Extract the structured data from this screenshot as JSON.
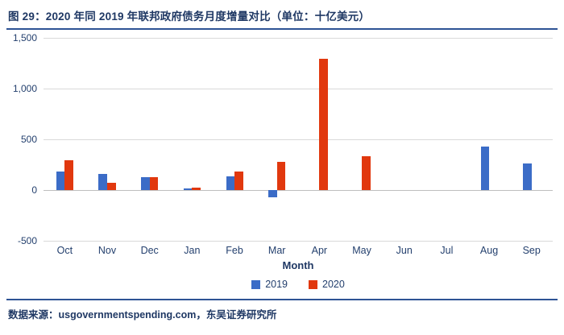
{
  "header": {
    "title": "图 29：2020 年同 2019 年联邦政府债务月度增量对比（单位：十亿美元）"
  },
  "footer": {
    "source": "数据来源：usgovernmentspending.com，东吴证券研究所"
  },
  "colors": {
    "title": "#1F3864",
    "rule": "#2E5395",
    "axis_text": "#24406E",
    "grid": "#D9D9D9"
  },
  "chart_data": {
    "type": "bar",
    "categories": [
      "Oct",
      "Nov",
      "Dec",
      "Jan",
      "Feb",
      "Mar",
      "Apr",
      "May",
      "Jun",
      "Jul",
      "Aug",
      "Sep"
    ],
    "series": [
      {
        "name": "2019",
        "color": "#3B6CC7",
        "values": [
          185,
          155,
          130,
          15,
          135,
          -75,
          0,
          0,
          0,
          0,
          430,
          260
        ]
      },
      {
        "name": "2020",
        "color": "#E1380E",
        "values": [
          290,
          70,
          130,
          20,
          180,
          275,
          1290,
          330,
          0,
          0,
          0,
          0
        ]
      }
    ],
    "title": "2020 年同 2019 年联邦政府债务月度增量对比",
    "xlabel": "Month",
    "ylabel": "",
    "ylim": [
      -500,
      1500
    ],
    "yticks": [
      {
        "value": 1500,
        "label": "1,500"
      },
      {
        "value": 1000,
        "label": "1,000"
      },
      {
        "value": 500,
        "label": "500"
      },
      {
        "value": 0,
        "label": "0"
      },
      {
        "value": -500,
        "label": "-500"
      }
    ],
    "grid": true,
    "legend_position": "bottom"
  }
}
